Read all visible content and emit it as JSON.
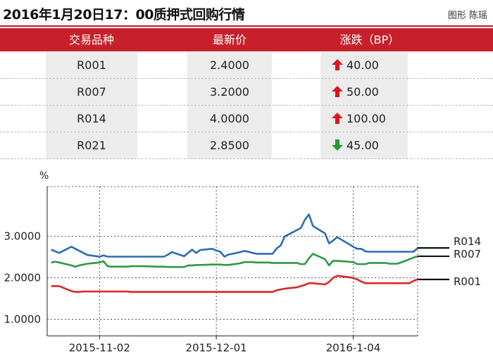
{
  "header": {
    "title": "2016年1月20日17：00质押式回购行情",
    "credit": "图形 陈瑶"
  },
  "table": {
    "columns": [
      "交易品种",
      "最新价",
      "涨跌（BP）"
    ],
    "rows": [
      {
        "product": "R001",
        "price": "2.4000",
        "change": "40.00",
        "direction": "up"
      },
      {
        "product": "R007",
        "price": "3.2000",
        "change": "50.00",
        "direction": "up"
      },
      {
        "product": "R014",
        "price": "4.0000",
        "change": "100.00",
        "direction": "up"
      },
      {
        "product": "R021",
        "price": "2.8500",
        "change": "45.00",
        "direction": "down"
      }
    ],
    "colors": {
      "up": "#d7191f",
      "down": "#1f9a3a",
      "header_bg": "#c8202a"
    }
  },
  "chart_data": {
    "type": "line",
    "ylabel": "%",
    "ylim": [
      0.6,
      4.2
    ],
    "yticks": [
      1.0,
      2.0,
      3.0
    ],
    "ytick_labels": [
      "1.0000",
      "2.0000",
      "3.0000"
    ],
    "x_range": [
      "2015-10-20",
      "2016-01-20"
    ],
    "x_gridlines": [
      "2015-11-02",
      "2015-12-01",
      "2016-01-04"
    ],
    "xtick_labels": [
      "2015-11-02",
      "2015-12-01",
      "2016-1-04"
    ],
    "grid": true,
    "series": [
      {
        "name": "R014",
        "color": "#2b6cb5",
        "x": [
          "2015-10-21",
          "2015-10-22",
          "2015-10-23",
          "2015-10-26",
          "2015-10-27",
          "2015-10-28",
          "2015-10-29",
          "2015-10-30",
          "2015-11-02",
          "2015-11-03",
          "2015-11-04",
          "2015-11-05",
          "2015-11-06",
          "2015-11-09",
          "2015-11-10",
          "2015-11-11",
          "2015-11-12",
          "2015-11-13",
          "2015-11-16",
          "2015-11-17",
          "2015-11-18",
          "2015-11-19",
          "2015-11-20",
          "2015-11-23",
          "2015-11-24",
          "2015-11-25",
          "2015-11-26",
          "2015-11-27",
          "2015-11-30",
          "2015-12-01",
          "2015-12-02",
          "2015-12-03",
          "2015-12-04",
          "2015-12-07",
          "2015-12-08",
          "2015-12-09",
          "2015-12-10",
          "2015-12-11",
          "2015-12-14",
          "2015-12-15",
          "2015-12-16",
          "2015-12-17",
          "2015-12-18",
          "2015-12-21",
          "2015-12-22",
          "2015-12-23",
          "2015-12-24",
          "2015-12-25",
          "2015-12-28",
          "2015-12-29",
          "2015-12-30",
          "2015-12-31",
          "2016-01-04",
          "2016-01-05",
          "2016-01-06",
          "2016-01-07",
          "2016-01-08",
          "2016-01-11",
          "2016-01-12",
          "2016-01-13",
          "2016-01-14",
          "2016-01-15",
          "2016-01-18",
          "2016-01-19",
          "2016-01-20"
        ],
        "values": [
          2.68,
          2.64,
          2.6,
          2.75,
          2.7,
          2.65,
          2.6,
          2.55,
          2.51,
          2.54,
          2.51,
          2.51,
          2.51,
          2.51,
          2.51,
          2.51,
          2.51,
          2.51,
          2.51,
          2.51,
          2.51,
          2.56,
          2.62,
          2.52,
          2.6,
          2.68,
          2.6,
          2.67,
          2.7,
          2.66,
          2.63,
          2.51,
          2.56,
          2.62,
          2.65,
          2.63,
          2.6,
          2.58,
          2.58,
          2.58,
          2.71,
          2.78,
          3.0,
          3.15,
          3.2,
          3.4,
          3.53,
          3.25,
          3.07,
          2.83,
          2.9,
          2.98,
          2.75,
          2.7,
          2.7,
          2.64,
          2.63,
          2.63,
          2.63,
          2.63,
          2.63,
          2.63,
          2.63,
          2.63,
          2.72
        ]
      },
      {
        "name": "R007",
        "color": "#2e9a44",
        "x": [
          "2015-10-21",
          "2015-10-22",
          "2015-10-23",
          "2015-10-26",
          "2015-10-27",
          "2015-10-28",
          "2015-10-29",
          "2015-10-30",
          "2015-11-02",
          "2015-11-03",
          "2015-11-04",
          "2015-11-05",
          "2015-11-06",
          "2015-11-09",
          "2015-11-10",
          "2015-11-11",
          "2015-11-12",
          "2015-11-13",
          "2015-11-16",
          "2015-11-17",
          "2015-11-18",
          "2015-11-19",
          "2015-11-20",
          "2015-11-23",
          "2015-11-24",
          "2015-11-25",
          "2015-11-26",
          "2015-11-27",
          "2015-11-30",
          "2015-12-01",
          "2015-12-02",
          "2015-12-03",
          "2015-12-04",
          "2015-12-07",
          "2015-12-08",
          "2015-12-09",
          "2015-12-10",
          "2015-12-11",
          "2015-12-14",
          "2015-12-15",
          "2015-12-16",
          "2015-12-17",
          "2015-12-18",
          "2015-12-21",
          "2015-12-22",
          "2015-12-23",
          "2015-12-24",
          "2015-12-25",
          "2015-12-28",
          "2015-12-29",
          "2015-12-30",
          "2015-12-31",
          "2016-01-04",
          "2016-01-05",
          "2016-01-06",
          "2016-01-07",
          "2016-01-08",
          "2016-01-11",
          "2016-01-12",
          "2016-01-13",
          "2016-01-14",
          "2016-01-15",
          "2016-01-18",
          "2016-01-19",
          "2016-01-20"
        ],
        "values": [
          2.37,
          2.39,
          2.37,
          2.3,
          2.27,
          2.3,
          2.32,
          2.34,
          2.37,
          2.4,
          2.28,
          2.27,
          2.27,
          2.27,
          2.28,
          2.28,
          2.28,
          2.28,
          2.27,
          2.27,
          2.27,
          2.26,
          2.26,
          2.26,
          2.3,
          2.3,
          2.31,
          2.31,
          2.32,
          2.32,
          2.32,
          2.31,
          2.31,
          2.35,
          2.38,
          2.38,
          2.38,
          2.37,
          2.37,
          2.36,
          2.36,
          2.36,
          2.36,
          2.36,
          2.33,
          2.33,
          2.47,
          2.58,
          2.45,
          2.3,
          2.41,
          2.41,
          2.38,
          2.33,
          2.33,
          2.33,
          2.36,
          2.36,
          2.36,
          2.34,
          2.34,
          2.34,
          2.45,
          2.49,
          2.52
        ]
      },
      {
        "name": "R001",
        "color": "#dc2626",
        "x": [
          "2015-10-21",
          "2015-10-22",
          "2015-10-23",
          "2015-10-26",
          "2015-10-27",
          "2015-10-28",
          "2015-10-29",
          "2015-10-30",
          "2015-11-02",
          "2015-11-03",
          "2015-11-04",
          "2015-11-05",
          "2015-11-06",
          "2015-11-09",
          "2015-11-10",
          "2015-11-11",
          "2015-11-12",
          "2015-11-13",
          "2015-11-16",
          "2015-11-17",
          "2015-11-18",
          "2015-11-19",
          "2015-11-20",
          "2015-11-23",
          "2015-11-24",
          "2015-11-25",
          "2015-11-26",
          "2015-11-27",
          "2015-11-30",
          "2015-12-01",
          "2015-12-02",
          "2015-12-03",
          "2015-12-04",
          "2015-12-07",
          "2015-12-08",
          "2015-12-09",
          "2015-12-10",
          "2015-12-11",
          "2015-12-14",
          "2015-12-15",
          "2015-12-16",
          "2015-12-17",
          "2015-12-18",
          "2015-12-21",
          "2015-12-22",
          "2015-12-23",
          "2015-12-24",
          "2015-12-25",
          "2015-12-28",
          "2015-12-29",
          "2015-12-30",
          "2015-12-31",
          "2016-01-04",
          "2016-01-05",
          "2016-01-06",
          "2016-01-07",
          "2016-01-08",
          "2016-01-11",
          "2016-01-12",
          "2016-01-13",
          "2016-01-14",
          "2016-01-15",
          "2016-01-18",
          "2016-01-19",
          "2016-01-20"
        ],
        "values": [
          1.8,
          1.8,
          1.8,
          1.68,
          1.66,
          1.66,
          1.67,
          1.67,
          1.67,
          1.67,
          1.67,
          1.67,
          1.67,
          1.67,
          1.66,
          1.66,
          1.66,
          1.66,
          1.66,
          1.66,
          1.66,
          1.66,
          1.66,
          1.66,
          1.66,
          1.66,
          1.66,
          1.66,
          1.66,
          1.66,
          1.66,
          1.66,
          1.66,
          1.66,
          1.66,
          1.66,
          1.66,
          1.66,
          1.66,
          1.66,
          1.7,
          1.72,
          1.74,
          1.77,
          1.8,
          1.83,
          1.87,
          1.87,
          1.84,
          1.9,
          2.0,
          2.05,
          2.0,
          1.96,
          1.91,
          1.87,
          1.87,
          1.87,
          1.87,
          1.87,
          1.87,
          1.87,
          1.87,
          1.93,
          1.96
        ]
      }
    ]
  }
}
